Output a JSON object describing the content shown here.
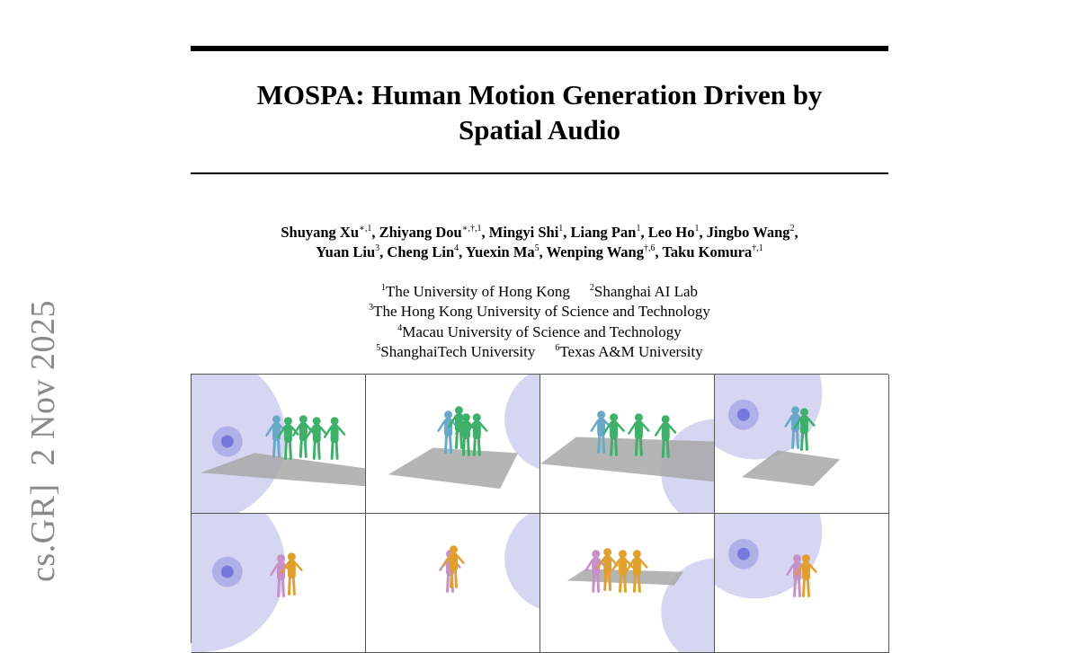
{
  "paper": {
    "title_line1": "MOSPA: Human Motion Generation Driven by",
    "title_line2": "Spatial Audio",
    "authors": [
      {
        "name": "Shuyang Xu",
        "sup": "∗,1"
      },
      {
        "name": "Zhiyang Dou",
        "sup": "∗,†,1"
      },
      {
        "name": "Mingyi Shi",
        "sup": "1"
      },
      {
        "name": "Liang Pan",
        "sup": "1"
      },
      {
        "name": "Leo Ho",
        "sup": "1"
      },
      {
        "name": "Jingbo Wang",
        "sup": "2"
      },
      {
        "name": "Yuan Liu",
        "sup": "3"
      },
      {
        "name": "Cheng Lin",
        "sup": "4"
      },
      {
        "name": "Yuexin Ma",
        "sup": "5"
      },
      {
        "name": "Wenping Wang",
        "sup": "†,6"
      },
      {
        "name": "Taku Komura",
        "sup": "†,1"
      }
    ],
    "affiliations": [
      {
        "sup": "1",
        "name": "The University of Hong Kong"
      },
      {
        "sup": "2",
        "name": "Shanghai AI Lab"
      },
      {
        "sup": "3",
        "name": "The Hong Kong University of Science and Technology"
      },
      {
        "sup": "4",
        "name": "Macau University of Science and Technology"
      },
      {
        "sup": "5",
        "name": "ShanghaiTech University"
      },
      {
        "sup": "6",
        "name": "Texas A&M University"
      }
    ],
    "arxiv_stamp": "cs.GR]  2 Nov 2025"
  },
  "figure": {
    "colors": {
      "sphere": "#c8c8ee",
      "source": "#6a6ad8",
      "floor": "#a8a8a8",
      "motion_row1": "#3fb06a",
      "motion_row1_ghost": "#6aa8c8",
      "motion_row2": "#e0a030",
      "motion_row2_ghost": "#c890c8"
    }
  }
}
